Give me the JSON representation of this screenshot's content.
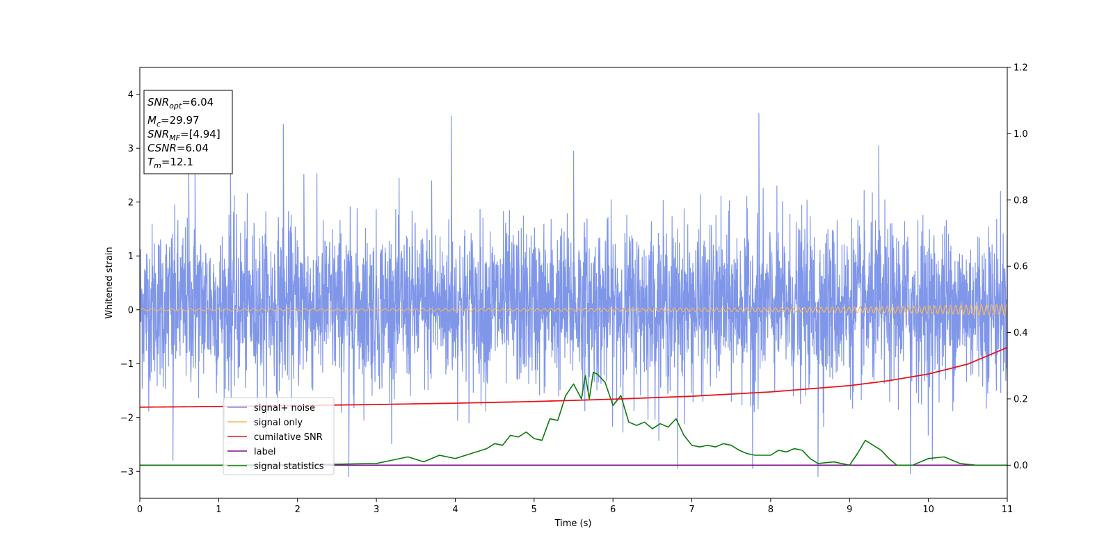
{
  "chart_data": {
    "type": "line",
    "xlabel": "Time (s)",
    "ylabel": "Whitened strain",
    "xlim": [
      0,
      11
    ],
    "ylim_left": [
      -3.5,
      4.5
    ],
    "ylim_right": [
      -0.1,
      1.2
    ],
    "x_ticks": [
      0,
      1,
      2,
      3,
      4,
      5,
      6,
      7,
      8,
      9,
      10,
      11
    ],
    "y_ticks_left": [
      -3,
      -2,
      -1,
      0,
      1,
      2,
      3,
      4
    ],
    "y_ticks_left_labels": [
      "−3",
      "−2",
      "−1",
      "0",
      "1",
      "2",
      "3",
      "4"
    ],
    "y_ticks_right": [
      0.0,
      0.2,
      0.4,
      0.6,
      0.8,
      1.0,
      1.2
    ],
    "y_ticks_right_labels": [
      "0.0",
      "0.2",
      "0.4",
      "0.6",
      "0.8",
      "1.0",
      "1.2"
    ],
    "grid": false,
    "legend_position": "lower-left",
    "annotation_box": {
      "snr_opt": {
        "base": "SNR",
        "sub": "opt",
        "value": "=6.04"
      },
      "mc": {
        "base": "M",
        "sub": "c",
        "value": "=29.97"
      },
      "snr_mf": {
        "base": "SNR",
        "sub": "MF",
        "value": "=[4.94]"
      },
      "csnr": {
        "base": "CSNR",
        "sub": "",
        "value": "=6.04"
      },
      "tm": {
        "base": "T",
        "sub": "m",
        "value": "=12.1"
      }
    },
    "series": [
      {
        "name": "signal+ noise",
        "color": "#7890e8",
        "axis": "left",
        "description_style": "dense noise, roughly within -2 to 2.5 with spikes to 3.7",
        "spike_points": [
          [
            0.62,
            2.7
          ],
          [
            0.7,
            2.55
          ],
          [
            1.15,
            2.62
          ],
          [
            1.82,
            3.45
          ],
          [
            2.08,
            2.52
          ],
          [
            3.95,
            3.6
          ],
          [
            3.7,
            2.4
          ],
          [
            5.5,
            2.95
          ],
          [
            7.85,
            3.65
          ],
          [
            9.37,
            3.05
          ],
          [
            2.65,
            -3.1
          ],
          [
            0.42,
            -2.8
          ],
          [
            8.6,
            -3.1
          ],
          [
            9.77,
            -3.05
          ],
          [
            7.77,
            -2.95
          ],
          [
            10.05,
            -2.8
          ],
          [
            6.82,
            -2.95
          ]
        ]
      },
      {
        "name": "signal only",
        "color": "#f5b760",
        "axis": "left",
        "x": [
          0,
          2,
          4,
          6,
          8,
          9,
          10,
          10.5,
          11
        ],
        "amplitude": [
          0.02,
          0.02,
          0.025,
          0.03,
          0.04,
          0.05,
          0.07,
          0.09,
          0.1
        ]
      },
      {
        "name": "cumilative SNR",
        "color": "#e8141a",
        "axis": "right",
        "x": [
          0,
          1,
          2,
          3,
          4,
          5,
          6,
          7,
          8,
          9,
          9.5,
          10,
          10.5,
          11
        ],
        "y": [
          0.175,
          0.177,
          0.18,
          0.183,
          0.187,
          0.192,
          0.199,
          0.208,
          0.221,
          0.24,
          0.255,
          0.275,
          0.305,
          0.355
        ]
      },
      {
        "name": "label",
        "color": "#7d0b8e",
        "axis": "right",
        "x": [
          0,
          11
        ],
        "y": [
          0.0,
          0.0
        ]
      },
      {
        "name": "signal statistics",
        "color": "#0a7a0a",
        "axis": "right",
        "x": [
          0,
          1,
          2,
          2.5,
          3.0,
          3.2,
          3.4,
          3.6,
          3.8,
          4.0,
          4.2,
          4.4,
          4.5,
          4.6,
          4.7,
          4.8,
          4.9,
          5.0,
          5.1,
          5.2,
          5.3,
          5.4,
          5.5,
          5.6,
          5.65,
          5.7,
          5.75,
          5.8,
          5.9,
          6.0,
          6.1,
          6.2,
          6.3,
          6.4,
          6.5,
          6.6,
          6.7,
          6.8,
          6.9,
          7.0,
          7.1,
          7.2,
          7.3,
          7.4,
          7.5,
          7.6,
          7.7,
          7.8,
          8.0,
          8.1,
          8.2,
          8.3,
          8.4,
          8.5,
          8.6,
          8.8,
          9.0,
          9.1,
          9.2,
          9.3,
          9.4,
          9.5,
          9.6,
          9.8,
          10.0,
          10.2,
          10.4,
          10.6,
          11.0
        ],
        "y": [
          0.0,
          0.0,
          0.002,
          0.003,
          0.005,
          0.015,
          0.025,
          0.01,
          0.03,
          0.02,
          0.035,
          0.05,
          0.065,
          0.06,
          0.09,
          0.085,
          0.1,
          0.08,
          0.075,
          0.14,
          0.135,
          0.21,
          0.245,
          0.2,
          0.27,
          0.2,
          0.28,
          0.275,
          0.25,
          0.18,
          0.21,
          0.13,
          0.12,
          0.13,
          0.11,
          0.125,
          0.115,
          0.14,
          0.09,
          0.06,
          0.055,
          0.06,
          0.055,
          0.065,
          0.06,
          0.045,
          0.035,
          0.03,
          0.03,
          0.045,
          0.04,
          0.05,
          0.045,
          0.02,
          0.005,
          0.01,
          0.0,
          0.035,
          0.075,
          0.06,
          0.045,
          0.02,
          0.0,
          0.0,
          0.02,
          0.025,
          0.005,
          0.0,
          0.0
        ]
      }
    ]
  }
}
